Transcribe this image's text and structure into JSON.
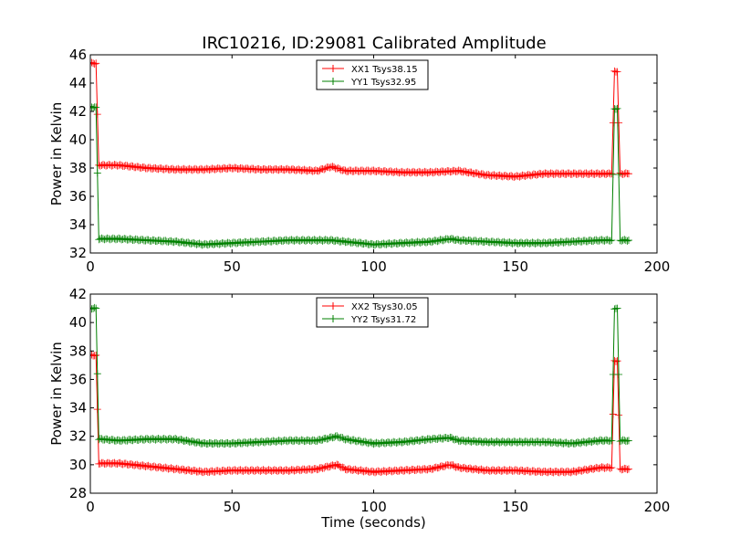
{
  "title": "IRC10216, ID:29081 Calibrated Amplitude",
  "chart_data": [
    {
      "type": "line",
      "xlabel": "",
      "ylabel": "Power in Kelvin",
      "xlim": [
        0,
        200
      ],
      "ylim": [
        32,
        46
      ],
      "xticks": [
        0,
        50,
        100,
        150,
        200
      ],
      "yticks": [
        32,
        34,
        36,
        38,
        40,
        42,
        44,
        46
      ],
      "grid": false,
      "legend_position": "top-center",
      "series": [
        {
          "name": "XX1 Tsys38.15",
          "color": "#ff0000",
          "x": [
            0,
            2,
            3,
            4,
            10,
            20,
            30,
            40,
            50,
            60,
            70,
            80,
            85,
            90,
            100,
            110,
            120,
            130,
            140,
            150,
            160,
            170,
            180,
            184,
            185,
            186,
            187,
            188,
            190
          ],
          "y": [
            45.4,
            45.4,
            38.2,
            38.2,
            38.2,
            38.0,
            37.9,
            37.9,
            38.0,
            37.9,
            37.9,
            37.8,
            38.1,
            37.8,
            37.8,
            37.7,
            37.7,
            37.8,
            37.5,
            37.4,
            37.6,
            37.6,
            37.6,
            37.6,
            44.8,
            44.8,
            37.6,
            37.6,
            37.6
          ]
        },
        {
          "name": "YY1 Tsys32.95",
          "color": "#008000",
          "x": [
            0,
            2,
            3,
            4,
            10,
            20,
            30,
            40,
            50,
            60,
            70,
            80,
            85,
            90,
            100,
            110,
            120,
            127,
            130,
            140,
            150,
            160,
            170,
            180,
            184,
            185,
            186,
            187,
            188,
            190
          ],
          "y": [
            42.3,
            42.3,
            33.0,
            33.0,
            33.0,
            32.9,
            32.8,
            32.6,
            32.7,
            32.8,
            32.9,
            32.9,
            32.9,
            32.8,
            32.6,
            32.7,
            32.8,
            33.0,
            32.9,
            32.8,
            32.7,
            32.7,
            32.8,
            32.9,
            32.9,
            42.2,
            42.2,
            32.9,
            32.9,
            32.9
          ]
        }
      ]
    },
    {
      "type": "line",
      "xlabel": "Time (seconds)",
      "ylabel": "Power in Kelvin",
      "xlim": [
        0,
        200
      ],
      "ylim": [
        28,
        42
      ],
      "xticks": [
        0,
        50,
        100,
        150,
        200
      ],
      "yticks": [
        28,
        30,
        32,
        34,
        36,
        38,
        40,
        42
      ],
      "grid": false,
      "legend_position": "top-center",
      "series": [
        {
          "name": "XX2 Tsys30.05",
          "color": "#ff0000",
          "x": [
            0,
            2,
            3,
            4,
            10,
            20,
            30,
            40,
            50,
            60,
            70,
            80,
            87,
            90,
            100,
            110,
            120,
            127,
            130,
            140,
            150,
            160,
            170,
            180,
            184,
            185,
            186,
            187,
            188,
            190
          ],
          "y": [
            37.7,
            37.7,
            30.1,
            30.1,
            30.1,
            29.9,
            29.7,
            29.5,
            29.6,
            29.6,
            29.6,
            29.7,
            30.0,
            29.7,
            29.5,
            29.6,
            29.7,
            30.0,
            29.8,
            29.6,
            29.6,
            29.5,
            29.5,
            29.8,
            29.8,
            37.3,
            37.3,
            29.7,
            29.7,
            29.7
          ]
        },
        {
          "name": "YY2 Tsys31.72",
          "color": "#008000",
          "x": [
            0,
            2,
            3,
            4,
            10,
            20,
            30,
            40,
            50,
            60,
            70,
            80,
            87,
            90,
            100,
            110,
            120,
            127,
            130,
            140,
            150,
            160,
            170,
            180,
            184,
            185,
            186,
            187,
            188,
            190
          ],
          "y": [
            41.0,
            41.0,
            31.8,
            31.8,
            31.7,
            31.8,
            31.8,
            31.5,
            31.5,
            31.6,
            31.7,
            31.7,
            32.0,
            31.8,
            31.5,
            31.6,
            31.8,
            31.9,
            31.7,
            31.6,
            31.6,
            31.6,
            31.5,
            31.7,
            31.7,
            41.0,
            41.0,
            31.7,
            31.7,
            31.7
          ]
        }
      ]
    }
  ]
}
